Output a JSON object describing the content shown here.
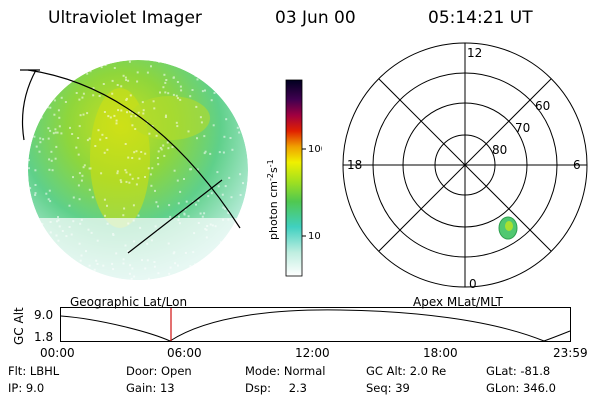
{
  "header": {
    "title": "Ultraviolet Imager",
    "date": "03 Jun 00",
    "time": "05:14:21 UT"
  },
  "colorbar": {
    "label": "photon cm",
    "label_exp1": "-2",
    "label_mid": "s",
    "label_exp2": "-1",
    "ticks": [
      "100",
      "10"
    ]
  },
  "polar": {
    "mlt_labels": {
      "top": "12",
      "left": "18",
      "right": "6",
      "bottom": "0"
    },
    "lat_labels": [
      "60",
      "70",
      "80"
    ]
  },
  "timeline": {
    "left_label": "Geographic Lat/Lon",
    "right_label": "Apex MLat/MLT",
    "axis_label": "GC Alt",
    "y_ticks": [
      "9.0",
      "1.8"
    ],
    "x_ticks": [
      "00:00",
      "06:00",
      "12:00",
      "18:00",
      "23:59"
    ]
  },
  "status": {
    "row1": [
      {
        "label": "Flt:",
        "value": "LBHL"
      },
      {
        "label": "Door:",
        "value": "Open"
      },
      {
        "label": "Mode:",
        "value": "Normal"
      },
      {
        "label": "GC Alt:",
        "value": "2.0 Re"
      },
      {
        "label": "GLat:",
        "value": "-81.8"
      }
    ],
    "row2": [
      {
        "label": "IP:",
        "value": "9.0"
      },
      {
        "label": "Gain:",
        "value": "13"
      },
      {
        "label": "Dsp:",
        "value": "2.3"
      },
      {
        "label": "Seq:",
        "value": "39"
      },
      {
        "label": "GLon:",
        "value": "346.0"
      }
    ]
  }
}
